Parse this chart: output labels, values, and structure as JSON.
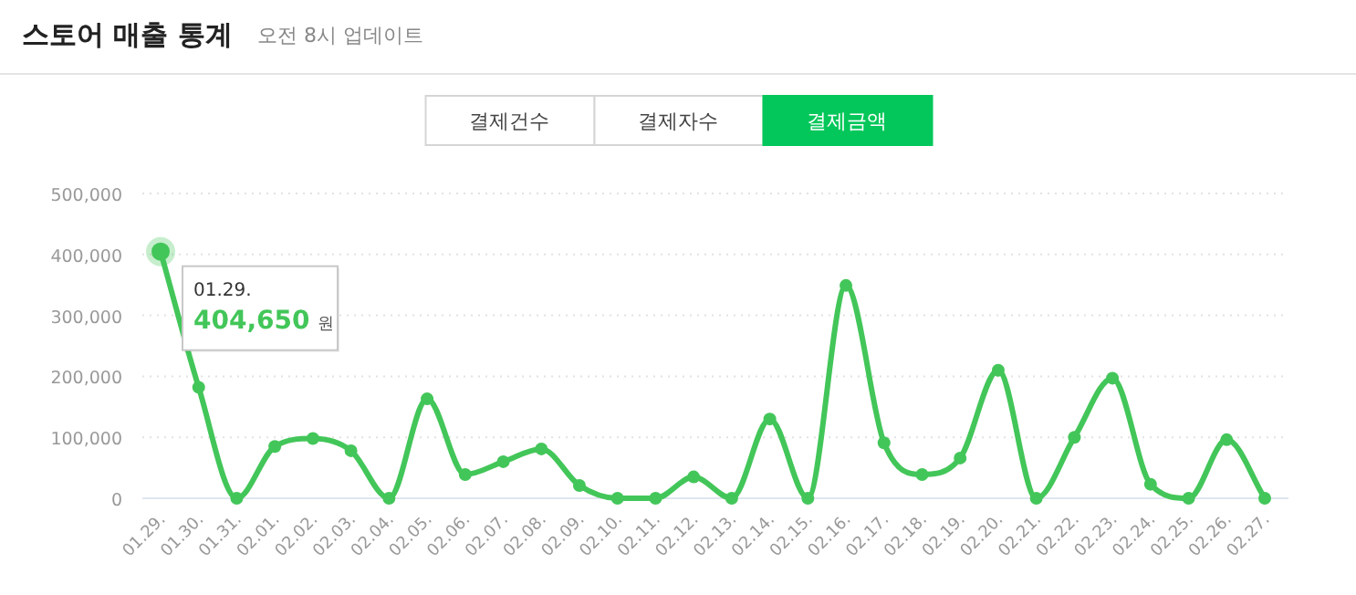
{
  "chart_data": [
    {
      "type": "other",
      "title": "스토어 매출 통계",
      "subtitle": "오전 8시 업데이트",
      "categories": [
        "결제건수",
        "결제자수",
        "결제금액"
      ],
      "colors": [
        "#ffffff",
        "#ffffff",
        "#03c75a"
      ]
    },
    {
      "type": "line",
      "color": "#43c659",
      "marker": "circle",
      "line_style": "solid",
      "grid": "y",
      "categories": [
        "01.29.",
        "01.30.",
        "01.31.",
        "02.01.",
        "02.02.",
        "02.03.",
        "02.04.",
        "02.05.",
        "02.06.",
        "02.07.",
        "02.08.",
        "02.09.",
        "02.10.",
        "02.11.",
        "02.12.",
        "02.13.",
        "02.14.",
        "02.15.",
        "02.16.",
        "02.17.",
        "02.18.",
        "02.19.",
        "02.20.",
        "02.21.",
        "02.22.",
        "02.23.",
        "02.24.",
        "02.25.",
        "02.26.",
        "02.27."
      ],
      "values": [
        404650,
        182000,
        0,
        85000,
        98000,
        78000,
        0,
        163000,
        39000,
        60000,
        81000,
        21000,
        0,
        0,
        35000,
        0,
        130000,
        0,
        349000,
        91000,
        39000,
        66000,
        210000,
        0,
        100000,
        197000,
        23000,
        0,
        96000,
        0
      ],
      "ylim": [
        0,
        500000
      ],
      "yticks": [
        0,
        {
          "value": 100000,
          "label": "100,000"
        },
        {
          "value": 200000,
          "label": "200,000"
        },
        {
          "value": 300000,
          "label": "300,000"
        },
        {
          "value": 400000,
          "label": "400,000"
        },
        {
          "value": 500000,
          "label": "500,000"
        }
      ],
      "annotations": [
        {
          "text": "01.29.",
          "x": "01.29.",
          "y": 404650
        },
        {
          "text": "404,650 원",
          "x": "01.29.",
          "y": 404650
        }
      ]
    }
  ]
}
